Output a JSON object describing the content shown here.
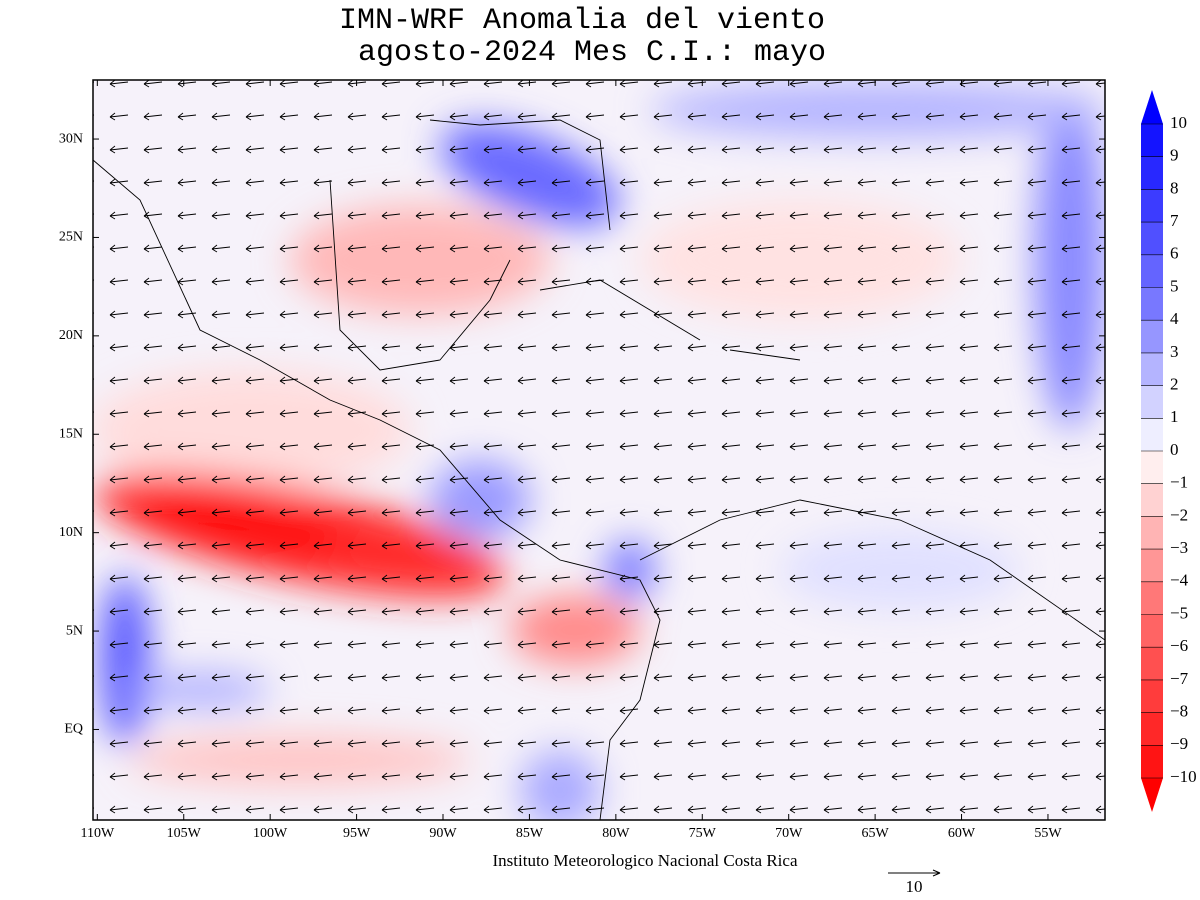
{
  "title": [
    "IMN-WRF Anomalia del viento",
    "agosto-2024 Mes C.I.: mayo"
  ],
  "map": {
    "xlim": [
      -110.25,
      -51.7
    ],
    "ylim": [
      -4.6,
      33
    ],
    "xticks": [
      {
        "value": -110,
        "label": "110W"
      },
      {
        "value": -105,
        "label": "105W"
      },
      {
        "value": -100,
        "label": "100W"
      },
      {
        "value": -95,
        "label": "95W"
      },
      {
        "value": -90,
        "label": "90W"
      },
      {
        "value": -85,
        "label": "85W"
      },
      {
        "value": -80,
        "label": "80W"
      },
      {
        "value": -75,
        "label": "75W"
      },
      {
        "value": -70,
        "label": "70W"
      },
      {
        "value": -65,
        "label": "65W"
      },
      {
        "value": -60,
        "label": "60W"
      },
      {
        "value": -55,
        "label": "55W"
      }
    ],
    "yticks": [
      {
        "value": 30,
        "label": "30N"
      },
      {
        "value": 25,
        "label": "25N"
      },
      {
        "value": 20,
        "label": "20N"
      },
      {
        "value": 15,
        "label": "15N"
      },
      {
        "value": 10,
        "label": "10N"
      },
      {
        "value": 5,
        "label": "5N"
      },
      {
        "value": 0,
        "label": "EQ"
      }
    ]
  },
  "colorbar": {
    "levels": [
      10,
      9,
      8,
      7,
      6,
      5,
      4,
      3,
      2,
      1,
      0,
      -1,
      -2,
      -3,
      -4,
      -5,
      -6,
      -7,
      -8,
      -9,
      -10
    ],
    "colors": [
      "#0000ff",
      "#1414ff",
      "#2828ff",
      "#3c3cff",
      "#5050ff",
      "#6464ff",
      "#7878ff",
      "#9696ff",
      "#b4b4ff",
      "#d2d2ff",
      "#eeeeff",
      "#ffeeee",
      "#ffd2d2",
      "#ffb4b4",
      "#ff9696",
      "#ff7878",
      "#ff6464",
      "#ff5050",
      "#ff3c3c",
      "#ff2828",
      "#ff1414",
      "#ff0000"
    ]
  },
  "footer": "Instituto Meteorologico Nacional Costa Rica",
  "vector_scale": 10
}
